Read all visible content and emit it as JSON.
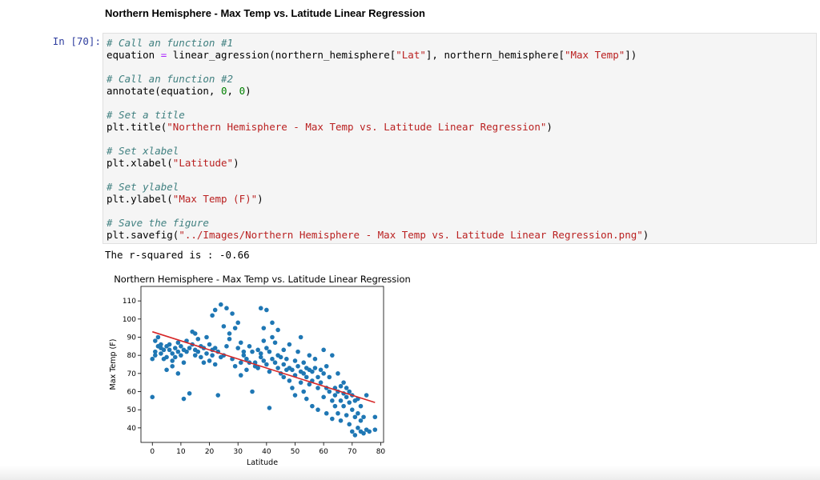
{
  "notebook": {
    "heading": "Northern Hemisphere - Max Temp vs. Latitude Linear Regression",
    "prompt": "In [70]:",
    "code_lines": [
      [
        {
          "t": "cm",
          "v": "# Call an function #1"
        }
      ],
      [
        {
          "t": "",
          "v": "equation "
        },
        {
          "t": "op",
          "v": "="
        },
        {
          "t": "",
          "v": " linear_agression(northern_hemisphere["
        },
        {
          "t": "st",
          "v": "\"Lat\""
        },
        {
          "t": "",
          "v": "], northern_hemisphere["
        },
        {
          "t": "st",
          "v": "\"Max Temp\""
        },
        {
          "t": "",
          "v": "])"
        }
      ],
      [],
      [
        {
          "t": "cm",
          "v": "# Call an function #2"
        }
      ],
      [
        {
          "t": "",
          "v": "annotate(equation, "
        },
        {
          "t": "nu",
          "v": "0"
        },
        {
          "t": "",
          "v": ", "
        },
        {
          "t": "nu",
          "v": "0"
        },
        {
          "t": "",
          "v": ")"
        }
      ],
      [],
      [
        {
          "t": "cm",
          "v": "# Set a title"
        }
      ],
      [
        {
          "t": "",
          "v": "plt.title("
        },
        {
          "t": "st",
          "v": "\"Northern Hemisphere - Max Temp vs. Latitude Linear Regression\""
        },
        {
          "t": "",
          "v": ")"
        }
      ],
      [],
      [
        {
          "t": "cm",
          "v": "# Set xlabel"
        }
      ],
      [
        {
          "t": "",
          "v": "plt.xlabel("
        },
        {
          "t": "st",
          "v": "\"Latitude\""
        },
        {
          "t": "",
          "v": ")"
        }
      ],
      [],
      [
        {
          "t": "cm",
          "v": "# Set ylabel"
        }
      ],
      [
        {
          "t": "",
          "v": "plt.ylabel("
        },
        {
          "t": "st",
          "v": "\"Max Temp (F)\""
        },
        {
          "t": "",
          "v": ")"
        }
      ],
      [],
      [
        {
          "t": "cm",
          "v": "# Save the figure"
        }
      ],
      [
        {
          "t": "",
          "v": "plt.savefig("
        },
        {
          "t": "st",
          "v": "\"../Images/Northern Hemisphere - Max Temp vs. Latitude Linear Regression.png\""
        },
        {
          "t": "",
          "v": ")"
        }
      ]
    ],
    "output_text": "The r-squared is : -0.66"
  },
  "chart_data": {
    "type": "scatter",
    "title": "Northern Hemisphere - Max Temp vs. Latitude Linear Regression",
    "xlabel": "Latitude",
    "ylabel": "Max Temp (F)",
    "xlim": [
      -4,
      81
    ],
    "ylim": [
      32,
      118
    ],
    "xticks": [
      0,
      10,
      20,
      30,
      40,
      50,
      60,
      70,
      80
    ],
    "yticks": [
      40,
      50,
      60,
      70,
      80,
      90,
      100,
      110
    ],
    "grid": false,
    "point_color": "#1f77b4",
    "line_color": "#d62728",
    "regression_line": {
      "x": [
        0,
        78
      ],
      "y": [
        93,
        54
      ]
    },
    "points": [
      [
        0,
        78
      ],
      [
        0,
        57
      ],
      [
        1,
        88
      ],
      [
        1,
        82
      ],
      [
        1,
        80
      ],
      [
        2,
        85
      ],
      [
        2,
        90
      ],
      [
        3,
        84
      ],
      [
        3,
        81
      ],
      [
        3,
        86
      ],
      [
        4,
        83
      ],
      [
        4,
        78
      ],
      [
        5,
        85
      ],
      [
        5,
        79
      ],
      [
        5,
        72
      ],
      [
        6,
        83
      ],
      [
        6,
        86
      ],
      [
        7,
        81
      ],
      [
        7,
        77
      ],
      [
        7,
        74
      ],
      [
        8,
        84
      ],
      [
        8,
        79
      ],
      [
        9,
        82
      ],
      [
        9,
        87
      ],
      [
        9,
        70
      ],
      [
        10,
        80
      ],
      [
        10,
        85
      ],
      [
        11,
        83
      ],
      [
        11,
        76
      ],
      [
        11,
        56
      ],
      [
        12,
        88
      ],
      [
        12,
        82
      ],
      [
        13,
        84
      ],
      [
        13,
        59
      ],
      [
        14,
        93
      ],
      [
        14,
        86
      ],
      [
        15,
        83
      ],
      [
        15,
        80
      ],
      [
        15,
        92
      ],
      [
        16,
        89
      ],
      [
        16,
        82
      ],
      [
        17,
        85
      ],
      [
        17,
        79
      ],
      [
        18,
        84
      ],
      [
        18,
        76
      ],
      [
        19,
        81
      ],
      [
        19,
        90
      ],
      [
        20,
        86
      ],
      [
        20,
        77
      ],
      [
        21,
        80
      ],
      [
        21,
        83
      ],
      [
        21,
        102
      ],
      [
        22,
        75
      ],
      [
        22,
        84
      ],
      [
        22,
        105
      ],
      [
        23,
        82
      ],
      [
        23,
        58
      ],
      [
        24,
        79
      ],
      [
        24,
        108
      ],
      [
        25,
        80
      ],
      [
        25,
        96
      ],
      [
        26,
        106
      ],
      [
        26,
        85
      ],
      [
        27,
        92
      ],
      [
        27,
        89
      ],
      [
        28,
        78
      ],
      [
        28,
        103
      ],
      [
        29,
        95
      ],
      [
        29,
        74
      ],
      [
        30,
        84
      ],
      [
        30,
        98
      ],
      [
        31,
        87
      ],
      [
        31,
        76
      ],
      [
        31,
        69
      ],
      [
        32,
        80
      ],
      [
        32,
        82
      ],
      [
        33,
        78
      ],
      [
        33,
        72
      ],
      [
        34,
        85
      ],
      [
        34,
        76
      ],
      [
        35,
        82
      ],
      [
        35,
        60
      ],
      [
        36,
        76
      ],
      [
        36,
        74
      ],
      [
        37,
        83
      ],
      [
        37,
        73
      ],
      [
        38,
        81
      ],
      [
        38,
        79
      ],
      [
        38,
        106
      ],
      [
        39,
        77
      ],
      [
        39,
        88
      ],
      [
        39,
        95
      ],
      [
        40,
        84
      ],
      [
        40,
        75
      ],
      [
        40,
        105
      ],
      [
        41,
        71
      ],
      [
        41,
        82
      ],
      [
        41,
        51
      ],
      [
        42,
        78
      ],
      [
        42,
        98
      ],
      [
        42,
        90
      ],
      [
        43,
        76
      ],
      [
        43,
        87
      ],
      [
        44,
        73
      ],
      [
        44,
        80
      ],
      [
        44,
        94
      ],
      [
        45,
        79
      ],
      [
        45,
        70
      ],
      [
        46,
        75
      ],
      [
        46,
        68
      ],
      [
        46,
        83
      ],
      [
        47,
        72
      ],
      [
        47,
        78
      ],
      [
        48,
        73
      ],
      [
        48,
        66
      ],
      [
        48,
        86
      ],
      [
        49,
        72
      ],
      [
        49,
        62
      ],
      [
        50,
        77
      ],
      [
        50,
        69
      ],
      [
        50,
        58
      ],
      [
        51,
        74
      ],
      [
        51,
        82
      ],
      [
        52,
        71
      ],
      [
        52,
        65
      ],
      [
        52,
        90
      ],
      [
        53,
        70
      ],
      [
        53,
        76
      ],
      [
        53,
        60
      ],
      [
        54,
        73
      ],
      [
        54,
        68
      ],
      [
        54,
        56
      ],
      [
        55,
        72
      ],
      [
        55,
        80
      ],
      [
        55,
        64
      ],
      [
        56,
        71
      ],
      [
        56,
        66
      ],
      [
        56,
        52
      ],
      [
        57,
        73
      ],
      [
        57,
        78
      ],
      [
        58,
        68
      ],
      [
        58,
        62
      ],
      [
        58,
        50
      ],
      [
        59,
        72
      ],
      [
        59,
        65
      ],
      [
        60,
        70
      ],
      [
        60,
        57
      ],
      [
        60,
        83
      ],
      [
        61,
        62
      ],
      [
        61,
        74
      ],
      [
        61,
        48
      ],
      [
        62,
        68
      ],
      [
        62,
        60
      ],
      [
        63,
        55
      ],
      [
        63,
        80
      ],
      [
        63,
        45
      ],
      [
        64,
        62
      ],
      [
        64,
        58
      ],
      [
        64,
        52
      ],
      [
        65,
        60
      ],
      [
        65,
        70
      ],
      [
        65,
        48
      ],
      [
        66,
        55
      ],
      [
        66,
        63
      ],
      [
        66,
        44
      ],
      [
        67,
        59
      ],
      [
        67,
        52
      ],
      [
        67,
        65
      ],
      [
        68,
        57
      ],
      [
        68,
        47
      ],
      [
        68,
        62
      ],
      [
        69,
        54
      ],
      [
        69,
        42
      ],
      [
        69,
        60
      ],
      [
        70,
        50
      ],
      [
        70,
        38
      ],
      [
        70,
        58
      ],
      [
        71,
        46
      ],
      [
        71,
        36
      ],
      [
        71,
        55
      ],
      [
        72,
        48
      ],
      [
        72,
        40
      ],
      [
        72,
        56
      ],
      [
        73,
        44
      ],
      [
        73,
        38
      ],
      [
        73,
        52
      ],
      [
        74,
        37
      ],
      [
        74,
        46
      ],
      [
        75,
        39
      ],
      [
        75,
        58
      ],
      [
        76,
        38
      ],
      [
        78,
        39
      ],
      [
        78,
        46
      ]
    ]
  }
}
